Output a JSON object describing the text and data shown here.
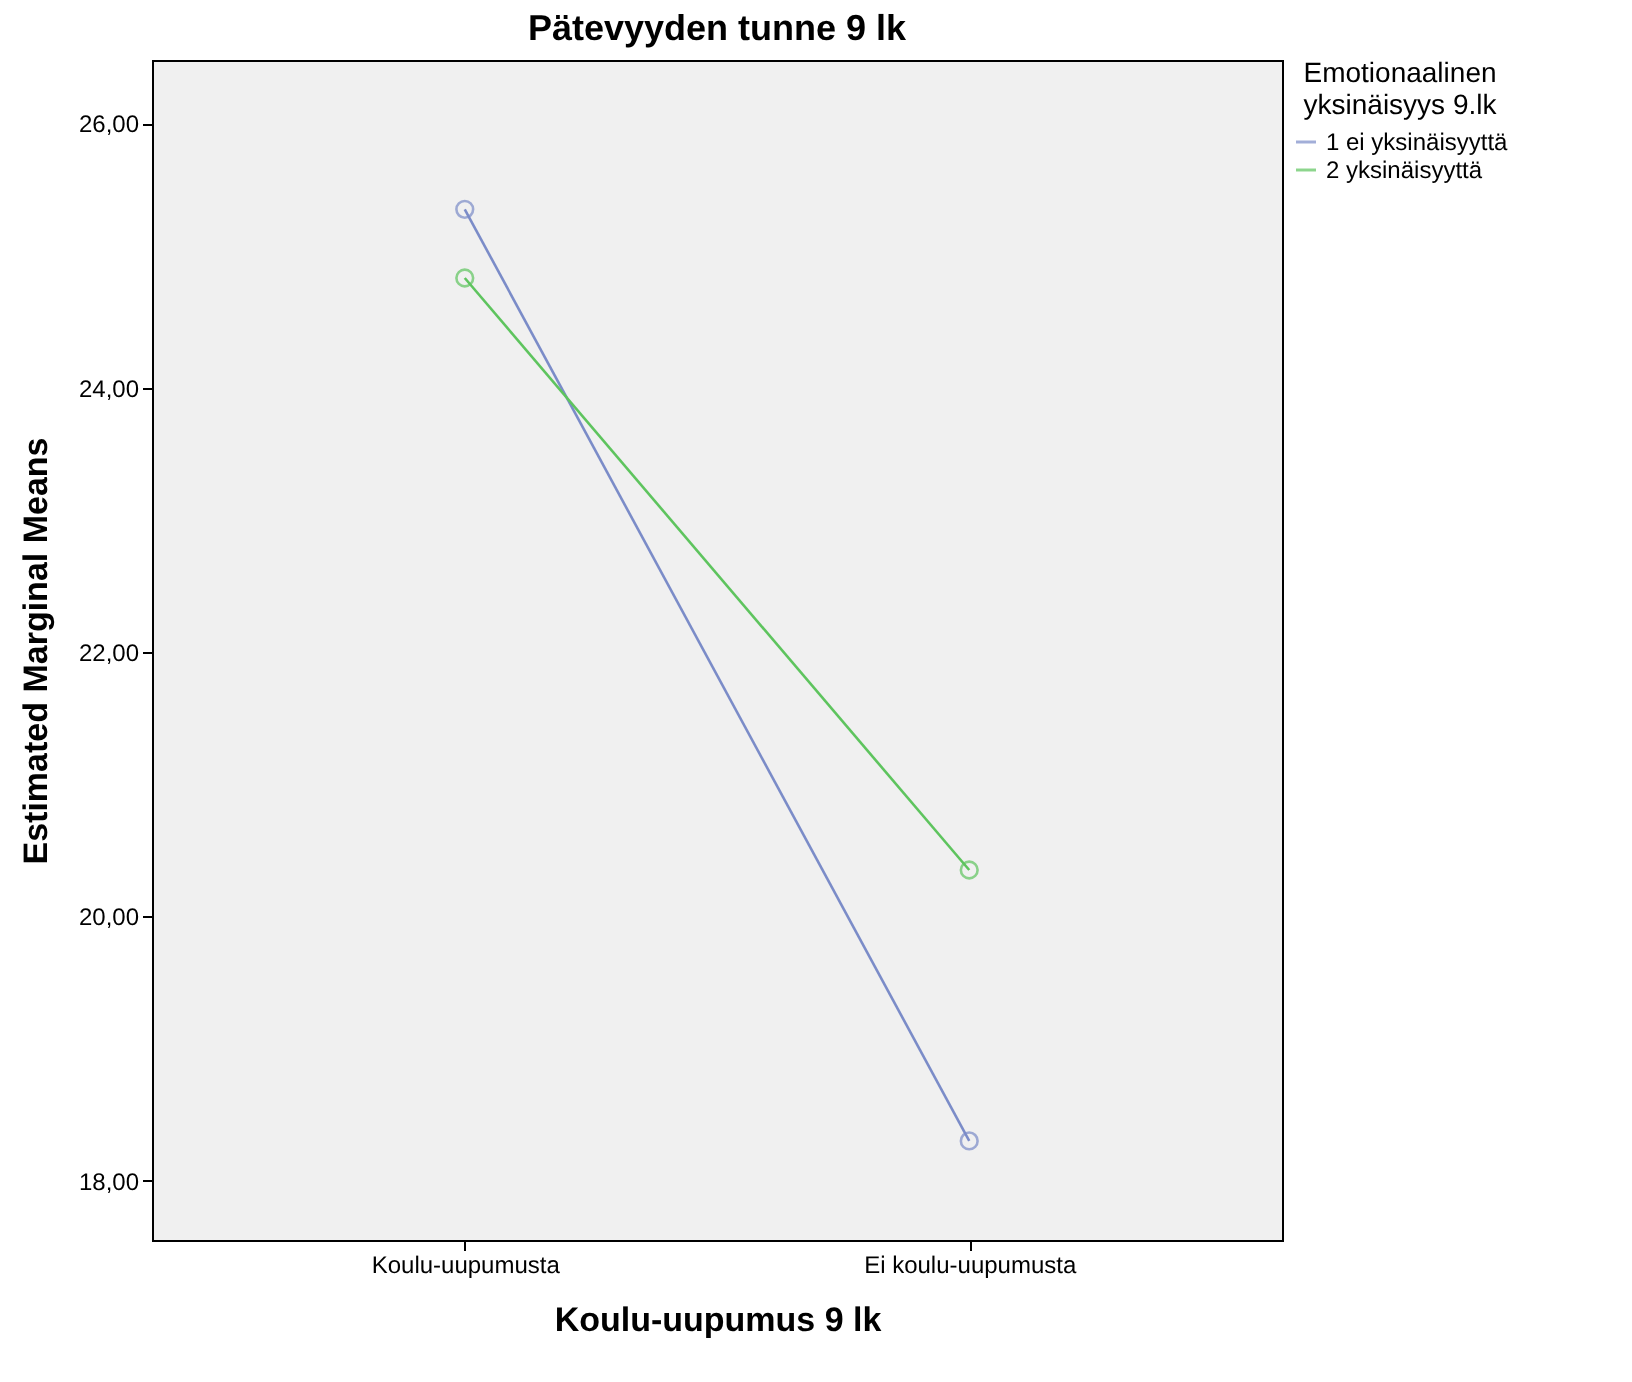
{
  "chart_data": {
    "type": "line",
    "title": "Pätevyyden tunne 9 lk",
    "xlabel": "Koulu-uupumus 9 lk",
    "ylabel": "Estimated Marginal Means",
    "legend_title": "Emotionaalinen yksinäisyys 9.lk",
    "categories": [
      "Koulu-uupumusta",
      "Ei koulu-uupumusta"
    ],
    "series": [
      {
        "name": "1 ei yksinäisyyttä",
        "color": "#7b8cc8",
        "values": [
          25.35,
          18.3
        ]
      },
      {
        "name": "2 yksinäisyyttä",
        "color": "#5ec45e",
        "values": [
          24.83,
          20.35
        ]
      }
    ],
    "ylim": [
      17.55,
      26.48
    ],
    "yticks": [
      {
        "value": 18,
        "label": "18,00"
      },
      {
        "value": 20,
        "label": "20,00"
      },
      {
        "value": 22,
        "label": "22,00"
      },
      {
        "value": 24,
        "label": "24,00"
      },
      {
        "value": 26,
        "label": "26,00"
      }
    ],
    "legend": "right",
    "marker": "circle",
    "line_style": "solid"
  }
}
